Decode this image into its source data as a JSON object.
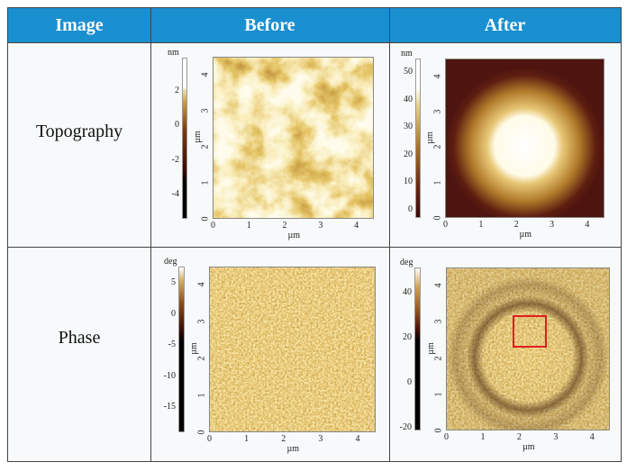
{
  "table": {
    "headers": [
      "Image",
      "Before",
      "After"
    ],
    "rows": [
      "Topography",
      "Phase"
    ]
  },
  "panels": {
    "topo_before": {
      "unit": "nm",
      "axis_unit": "µm",
      "cbar_range": [
        -5.4,
        3.9
      ],
      "cbar_ticks": [
        "2",
        "0",
        "-2",
        "-4"
      ],
      "cbar_tick_values": [
        2,
        0,
        -2,
        -4
      ],
      "xy_ticks": [
        "0",
        "1",
        "2",
        "3",
        "4"
      ],
      "xy_range": [
        0,
        4.5
      ]
    },
    "topo_after": {
      "unit": "nm",
      "axis_unit": "µm",
      "cbar_range": [
        -3,
        55
      ],
      "cbar_ticks": [
        "50",
        "40",
        "30",
        "20",
        "10",
        "0"
      ],
      "cbar_tick_values": [
        50,
        40,
        30,
        20,
        10,
        0
      ],
      "xy_ticks": [
        "0",
        "1",
        "2",
        "3",
        "4"
      ],
      "xy_range": [
        0,
        4.5
      ]
    },
    "phase_before": {
      "unit": "deg",
      "axis_unit": "µm",
      "cbar_range": [
        -19,
        7.6
      ],
      "cbar_ticks": [
        "5",
        "0",
        "-5",
        "-10",
        "-15"
      ],
      "cbar_tick_values": [
        5,
        0,
        -5,
        -10,
        -15
      ],
      "xy_ticks": [
        "0",
        "1",
        "2",
        "3",
        "4"
      ],
      "xy_range": [
        0,
        4.5
      ]
    },
    "phase_after": {
      "unit": "deg",
      "axis_unit": "µm",
      "cbar_range": [
        -21,
        51
      ],
      "cbar_ticks": [
        "40",
        "20",
        "0",
        "-20"
      ],
      "cbar_tick_values": [
        40,
        20,
        0,
        -20
      ],
      "xy_ticks": [
        "0",
        "1",
        "2",
        "3",
        "4"
      ],
      "xy_range": [
        0,
        4.5
      ],
      "highlight_color": "#e02020"
    }
  },
  "colors": {
    "header_bg": "#1a8fd0",
    "header_text": "#ffffff",
    "highlight": "#e02020"
  }
}
